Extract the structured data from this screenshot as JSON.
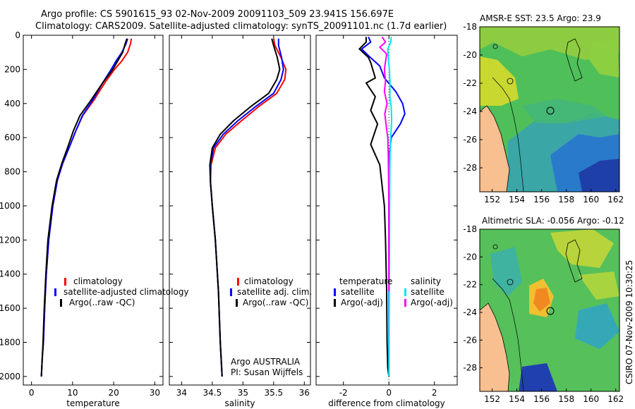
{
  "colors": {
    "clim": "#ff0000",
    "sat": "#0000ff",
    "argo": "#000000",
    "cyan": "#00e5ee",
    "magenta": "#ff00ff",
    "land": "#f8c090"
  },
  "titles": {
    "line1": "Argo profile: CS 5901615_93 02-Nov-2009 20091103_509 23.941S 156.697E",
    "line2": "Climatology: CARS2009. Satellite-adjusted climatology: synTS_20091101.nc (1.7d earlier)"
  },
  "footer": {
    "owner": "Argo AUSTRALIA",
    "pi": "PI: Susan Wijffels",
    "credit": "CSIRO 07-Nov-2009 10:30:25"
  },
  "chart_data": [
    {
      "type": "line",
      "title": "",
      "xlabel": "temperature",
      "ylabel": "",
      "xlim": [
        -2,
        32
      ],
      "ylim": [
        2050,
        0
      ],
      "xticks": [
        0,
        10,
        20,
        30
      ],
      "yticks": [
        0,
        200,
        400,
        600,
        800,
        1000,
        1200,
        1400,
        1600,
        1800,
        2000
      ],
      "legend": [
        "climatology",
        "satellite-adjusted climatology",
        "Argo(..raw -QC)"
      ],
      "series": [
        {
          "name": "climatology",
          "color": "#ff0000",
          "x": [
            24.3,
            24.1,
            23.4,
            22.0,
            20.2,
            17.8,
            15.2,
            12.5,
            10.8,
            9.3,
            7.6,
            6.3,
            5.2,
            4.2,
            3.6,
            3.2,
            2.9,
            2.6,
            2.4
          ],
          "y": [
            20,
            50,
            100,
            150,
            200,
            280,
            380,
            470,
            560,
            650,
            750,
            850,
            1000,
            1200,
            1400,
            1600,
            1800,
            1900,
            2000
          ]
        },
        {
          "name": "satellite-adjusted climatology",
          "color": "#0000ff",
          "x": [
            23.4,
            23.0,
            22.0,
            20.6,
            19.4,
            17.3,
            14.9,
            12.4,
            10.8,
            9.3,
            7.6,
            6.3,
            5.2,
            4.2,
            3.6,
            3.2,
            2.9,
            2.6,
            2.4
          ],
          "y": [
            20,
            50,
            100,
            150,
            200,
            280,
            380,
            470,
            560,
            650,
            750,
            850,
            1000,
            1200,
            1400,
            1600,
            1800,
            1900,
            2000
          ]
        },
        {
          "name": "Argo(..raw -QC)",
          "color": "#000000",
          "x": [
            23.2,
            22.8,
            22.2,
            21.0,
            19.8,
            17.3,
            14.5,
            11.8,
            10.2,
            8.9,
            7.4,
            6.1,
            5.0,
            4.0,
            3.5,
            3.1,
            2.8,
            2.6,
            2.4
          ],
          "y": [
            20,
            50,
            100,
            150,
            200,
            280,
            380,
            470,
            560,
            650,
            750,
            850,
            1000,
            1200,
            1400,
            1600,
            1800,
            1900,
            2000
          ]
        }
      ]
    },
    {
      "type": "line",
      "title": "",
      "xlabel": "salinity",
      "ylabel": "",
      "xlim": [
        33.8,
        36.1
      ],
      "ylim": [
        2050,
        0
      ],
      "xticks": [
        34,
        34.5,
        35,
        35.5,
        36
      ],
      "yticks": [],
      "legend": [
        "climatology",
        "satellite adj. clim.",
        "Argo(..raw -QC)"
      ],
      "series": [
        {
          "name": "climatology",
          "color": "#ff0000",
          "x": [
            35.5,
            35.52,
            35.62,
            35.7,
            35.68,
            35.55,
            35.25,
            34.98,
            34.72,
            34.55,
            34.48,
            34.47,
            34.5,
            34.55,
            34.6,
            34.63,
            34.66
          ],
          "y": [
            20,
            60,
            130,
            200,
            260,
            340,
            420,
            500,
            580,
            660,
            760,
            860,
            1000,
            1200,
            1500,
            1800,
            2000
          ]
        },
        {
          "name": "satellite adj. clim.",
          "color": "#0000ff",
          "x": [
            35.58,
            35.58,
            35.63,
            35.66,
            35.62,
            35.5,
            35.2,
            34.92,
            34.68,
            34.52,
            34.47,
            34.47,
            34.5,
            34.55,
            34.6,
            34.63,
            34.66
          ],
          "y": [
            20,
            60,
            130,
            200,
            260,
            340,
            420,
            500,
            580,
            660,
            760,
            860,
            1000,
            1200,
            1500,
            1800,
            2000
          ]
        },
        {
          "name": "Argo(..raw -QC)",
          "color": "#000000",
          "x": [
            35.47,
            35.5,
            35.56,
            35.6,
            35.55,
            35.42,
            35.12,
            34.85,
            34.63,
            34.5,
            34.46,
            34.47,
            34.5,
            34.55,
            34.6,
            34.63,
            34.66
          ],
          "y": [
            20,
            60,
            130,
            200,
            260,
            340,
            420,
            500,
            580,
            660,
            760,
            860,
            1000,
            1200,
            1500,
            1800,
            2000
          ]
        }
      ]
    },
    {
      "type": "line",
      "title": "",
      "xlabel": "difference from climatology",
      "ylabel": "",
      "xlim": [
        -3.2,
        3.0
      ],
      "ylim": [
        2050,
        0
      ],
      "xticks": [
        -2,
        0,
        2
      ],
      "yticks": [],
      "legend": [
        "temperature",
        "satellite",
        "Argo(-adj)",
        "salinity",
        "satellite",
        "Argo(-adj)"
      ],
      "series": [
        {
          "name": "temperature satellite",
          "color": "#0000ff",
          "x": [
            -0.9,
            -0.8,
            -1.2,
            -0.9,
            -0.4,
            -0.2,
            0.3,
            0.6,
            0.7,
            0.5,
            0.1,
            0.02,
            0,
            0
          ],
          "y": [
            10,
            40,
            80,
            120,
            180,
            250,
            330,
            400,
            460,
            520,
            600,
            700,
            900,
            2000
          ]
        },
        {
          "name": "temperature Argo(-adj)",
          "color": "#000000",
          "x": [
            -1.0,
            -1.0,
            -1.3,
            -0.9,
            -0.8,
            -0.6,
            -1.0,
            -0.6,
            -0.8,
            -0.5,
            -0.8,
            -0.4,
            -0.3,
            -0.2,
            -0.15,
            -0.1,
            -0.08,
            -0.05,
            0
          ],
          "y": [
            10,
            40,
            80,
            130,
            160,
            250,
            280,
            360,
            440,
            520,
            640,
            760,
            880,
            1000,
            1200,
            1500,
            1800,
            1950,
            2000
          ]
        },
        {
          "name": "salinity satellite",
          "color": "#00e5ee",
          "x": [
            0.1,
            0.08,
            -0.05,
            -0.02,
            0.02,
            0.05,
            0.04,
            0.1,
            0.12,
            0.08,
            0.05,
            0.04,
            0.03,
            0.02,
            0.01,
            0
          ],
          "y": [
            10,
            40,
            80,
            150,
            200,
            280,
            360,
            420,
            500,
            600,
            700,
            800,
            1000,
            1300,
            1700,
            2000
          ]
        },
        {
          "name": "salinity Argo(-adj)",
          "color": "#ff00ff",
          "x": [
            -0.3,
            -0.15,
            -0.4,
            -0.1,
            -0.2,
            -0.15,
            -0.2,
            -0.08,
            -0.18,
            -0.12,
            -0.05,
            -0.03,
            -0.02,
            0,
            0
          ],
          "y": [
            10,
            40,
            70,
            110,
            200,
            270,
            330,
            400,
            460,
            530,
            600,
            700,
            800,
            1000,
            1500
          ]
        }
      ]
    },
    {
      "type": "heatmap",
      "title": "AMSR-E SST: 23.5 Argo: 23.9",
      "xlabel": "",
      "ylabel": "",
      "xlim": [
        151,
        162.3
      ],
      "ylim": [
        -29.7,
        -18
      ],
      "xticks": [
        152,
        154,
        156,
        158,
        160,
        162
      ],
      "yticks": [
        -18,
        -20,
        -22,
        -24,
        -26,
        -28
      ]
    },
    {
      "type": "heatmap",
      "title": "Altimetric SLA: -0.056 Argo: -0.12",
      "xlabel": "",
      "ylabel": "",
      "xlim": [
        151,
        162.3
      ],
      "ylim": [
        -29.7,
        -18
      ],
      "xticks": [
        152,
        154,
        156,
        158,
        160,
        162
      ],
      "yticks": [
        -18,
        -20,
        -22,
        -24,
        -26,
        -28
      ]
    }
  ]
}
